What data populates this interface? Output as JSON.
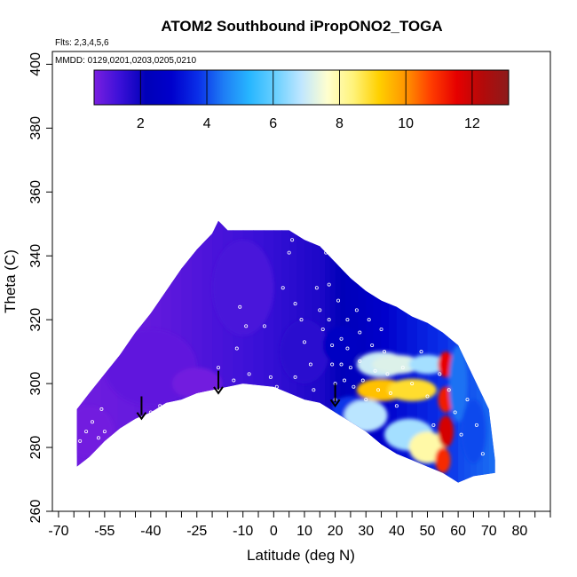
{
  "chart_data": {
    "type": "heatmap",
    "title": "ATOM2 Southbound iPropONO2_TOGA",
    "flights_label": "Flts: 2,3,4,5,6",
    "dates_label": "MMDD: 0129,0201,0203,0205,0210",
    "xlabel": "Latitude (deg N)",
    "ylabel": "Theta (C)",
    "xlim": [
      -72,
      90
    ],
    "ylim": [
      260,
      404
    ],
    "x_ticks": [
      -70,
      -55,
      -40,
      -25,
      -10,
      0,
      10,
      20,
      30,
      40,
      50,
      60,
      70,
      80
    ],
    "x_tick_labels": [
      "-70",
      "-55",
      "-40",
      "-25",
      "-10",
      "0",
      "10",
      "20",
      "30",
      "40",
      "50",
      "60",
      "70",
      "80"
    ],
    "x_minor_ticks": [
      -65,
      -60,
      -50,
      -45,
      -35,
      -30,
      -20,
      -15,
      -5,
      5,
      15,
      25,
      35,
      45,
      55,
      65,
      75,
      85,
      90
    ],
    "y_ticks": [
      260,
      280,
      300,
      320,
      340,
      360,
      380,
      400
    ],
    "y_tick_labels": [
      "260",
      "280",
      "300",
      "320",
      "340",
      "360",
      "380",
      "400"
    ],
    "colorbar": {
      "range": [
        0.6,
        13.1
      ],
      "ticks": [
        2,
        4,
        6,
        8,
        10,
        12
      ],
      "tick_labels": [
        "2",
        "4",
        "6",
        "8",
        "10",
        "12"
      ],
      "boundaries": [
        2,
        4,
        6,
        8,
        10,
        12
      ],
      "colors": [
        "#7a1fe0",
        "#3a10d8",
        "#0000b8",
        "#0000cc",
        "#0a2ee8",
        "#1e7df5",
        "#27b6ff",
        "#6ad0ff",
        "#bfe6ff",
        "#ffffcf",
        "#fff37a",
        "#ffd000",
        "#ff9600",
        "#ff3d00",
        "#e60000",
        "#b30a0a",
        "#8c1b1b"
      ]
    },
    "envelope": {
      "top": [
        [
          -64,
          292
        ],
        [
          -60,
          297
        ],
        [
          -55,
          303
        ],
        [
          -50,
          309
        ],
        [
          -45,
          316
        ],
        [
          -40,
          322
        ],
        [
          -35,
          329
        ],
        [
          -30,
          336
        ],
        [
          -25,
          342
        ],
        [
          -20,
          347
        ],
        [
          -18,
          351
        ],
        [
          -15,
          348
        ],
        [
          -10,
          348
        ],
        [
          0,
          348
        ],
        [
          5,
          348
        ],
        [
          10,
          345
        ],
        [
          15,
          343
        ],
        [
          20,
          338
        ],
        [
          25,
          333
        ],
        [
          30,
          329
        ],
        [
          35,
          326
        ],
        [
          40,
          324
        ],
        [
          45,
          321
        ],
        [
          50,
          319
        ],
        [
          55,
          316
        ],
        [
          60,
          312
        ],
        [
          65,
          302
        ],
        [
          70,
          292
        ],
        [
          72,
          276
        ]
      ],
      "bottom": [
        [
          -64,
          274
        ],
        [
          -60,
          277
        ],
        [
          -55,
          282
        ],
        [
          -50,
          286
        ],
        [
          -45,
          289
        ],
        [
          -40,
          291
        ],
        [
          -35,
          294
        ],
        [
          -30,
          295
        ],
        [
          -25,
          297
        ],
        [
          -20,
          298
        ],
        [
          -10,
          300
        ],
        [
          0,
          299
        ],
        [
          5,
          297
        ],
        [
          10,
          295
        ],
        [
          15,
          294
        ],
        [
          20,
          291
        ],
        [
          25,
          288
        ],
        [
          30,
          285
        ],
        [
          35,
          281
        ],
        [
          40,
          278
        ],
        [
          45,
          276
        ],
        [
          50,
          274
        ],
        [
          55,
          272
        ],
        [
          60,
          269
        ],
        [
          65,
          271
        ],
        [
          72,
          272
        ]
      ]
    },
    "concentration_field": {
      "units": "same as colorbar",
      "blobs": [
        {
          "lat": -60,
          "theta": 285,
          "value": 0.7,
          "size": [
            8,
            8
          ]
        },
        {
          "lat": -40,
          "theta": 305,
          "value": 0.9,
          "size": [
            15,
            12
          ]
        },
        {
          "lat": -25,
          "theta": 300,
          "value": 0.7,
          "size": [
            8,
            5
          ]
        },
        {
          "lat": -10,
          "theta": 330,
          "value": 1.2,
          "size": [
            10,
            15
          ]
        },
        {
          "lat": 10,
          "theta": 310,
          "value": 1.6,
          "size": [
            8,
            10
          ]
        },
        {
          "lat": 22,
          "theta": 312,
          "value": 2.6,
          "size": [
            6,
            6
          ]
        },
        {
          "lat": 25,
          "theta": 292,
          "value": 3.8,
          "size": [
            6,
            4
          ]
        },
        {
          "lat": 30,
          "theta": 290,
          "value": 6.8,
          "size": [
            7,
            5
          ]
        },
        {
          "lat": 35,
          "theta": 306,
          "value": 7.0,
          "size": [
            8,
            4
          ]
        },
        {
          "lat": 35,
          "theta": 298,
          "value": 9.4,
          "size": [
            8,
            3.5
          ]
        },
        {
          "lat": 45,
          "theta": 298,
          "value": 8.9,
          "size": [
            8,
            3.5
          ]
        },
        {
          "lat": 40,
          "theta": 306,
          "value": 7.2,
          "size": [
            8,
            3
          ]
        },
        {
          "lat": 50,
          "theta": 306,
          "value": 6.6,
          "size": [
            6,
            3
          ]
        },
        {
          "lat": 44,
          "theta": 284,
          "value": 6.6,
          "size": [
            8,
            5
          ]
        },
        {
          "lat": 50,
          "theta": 280,
          "value": 8.0,
          "size": [
            6,
            5
          ]
        },
        {
          "lat": 56,
          "theta": 306,
          "value": 11.5,
          "size": [
            2.5,
            4
          ]
        },
        {
          "lat": 56,
          "theta": 295,
          "value": 11.2,
          "size": [
            2.5,
            4
          ]
        },
        {
          "lat": 56,
          "theta": 285,
          "value": 11.8,
          "size": [
            2.5,
            5
          ]
        },
        {
          "lat": 55,
          "theta": 276,
          "value": 11.0,
          "size": [
            2.5,
            4
          ]
        },
        {
          "lat": 60,
          "theta": 300,
          "value": 4.4,
          "size": [
            3,
            12
          ]
        },
        {
          "lat": 65,
          "theta": 285,
          "value": 4.0,
          "size": [
            4,
            10
          ]
        }
      ]
    },
    "observations": [
      [
        -63,
        282
      ],
      [
        -61,
        285
      ],
      [
        -59,
        288
      ],
      [
        -57,
        283
      ],
      [
        -56,
        292
      ],
      [
        -55,
        285
      ],
      [
        -42,
        289
      ],
      [
        -40,
        291
      ],
      [
        -37,
        293
      ],
      [
        -18,
        305
      ],
      [
        -14,
        298
      ],
      [
        -13,
        301
      ],
      [
        -12,
        311
      ],
      [
        -11,
        324
      ],
      [
        -9,
        318
      ],
      [
        -8,
        303
      ],
      [
        -3,
        318
      ],
      [
        -1,
        302
      ],
      [
        1,
        299
      ],
      [
        3,
        330
      ],
      [
        5,
        341
      ],
      [
        6,
        345
      ],
      [
        7,
        325
      ],
      [
        7,
        302
      ],
      [
        9,
        320
      ],
      [
        10,
        313
      ],
      [
        12,
        306
      ],
      [
        13,
        298
      ],
      [
        14,
        330
      ],
      [
        15,
        323
      ],
      [
        16,
        317
      ],
      [
        17,
        341
      ],
      [
        18,
        331
      ],
      [
        18,
        320
      ],
      [
        19,
        312
      ],
      [
        19,
        306
      ],
      [
        20,
        300
      ],
      [
        20,
        295
      ],
      [
        21,
        326
      ],
      [
        22,
        314
      ],
      [
        22,
        306
      ],
      [
        23,
        301
      ],
      [
        24,
        320
      ],
      [
        24,
        311
      ],
      [
        25,
        305
      ],
      [
        26,
        299
      ],
      [
        27,
        323
      ],
      [
        28,
        316
      ],
      [
        28,
        307
      ],
      [
        29,
        301
      ],
      [
        30,
        295
      ],
      [
        31,
        320
      ],
      [
        32,
        312
      ],
      [
        33,
        304
      ],
      [
        34,
        298
      ],
      [
        35,
        317
      ],
      [
        36,
        310
      ],
      [
        37,
        303
      ],
      [
        38,
        297
      ],
      [
        40,
        293
      ],
      [
        42,
        305
      ],
      [
        45,
        300
      ],
      [
        48,
        310
      ],
      [
        50,
        296
      ],
      [
        52,
        287
      ],
      [
        54,
        303
      ],
      [
        57,
        298
      ],
      [
        59,
        291
      ],
      [
        61,
        284
      ],
      [
        63,
        295
      ],
      [
        66,
        287
      ],
      [
        68,
        278
      ]
    ],
    "arrows": [
      {
        "lat": -43,
        "theta_top": 296,
        "theta_tip": 289
      },
      {
        "lat": -18,
        "theta_top": 304,
        "theta_tip": 297
      },
      {
        "lat": 20,
        "theta_top": 300,
        "theta_tip": 293
      }
    ]
  }
}
